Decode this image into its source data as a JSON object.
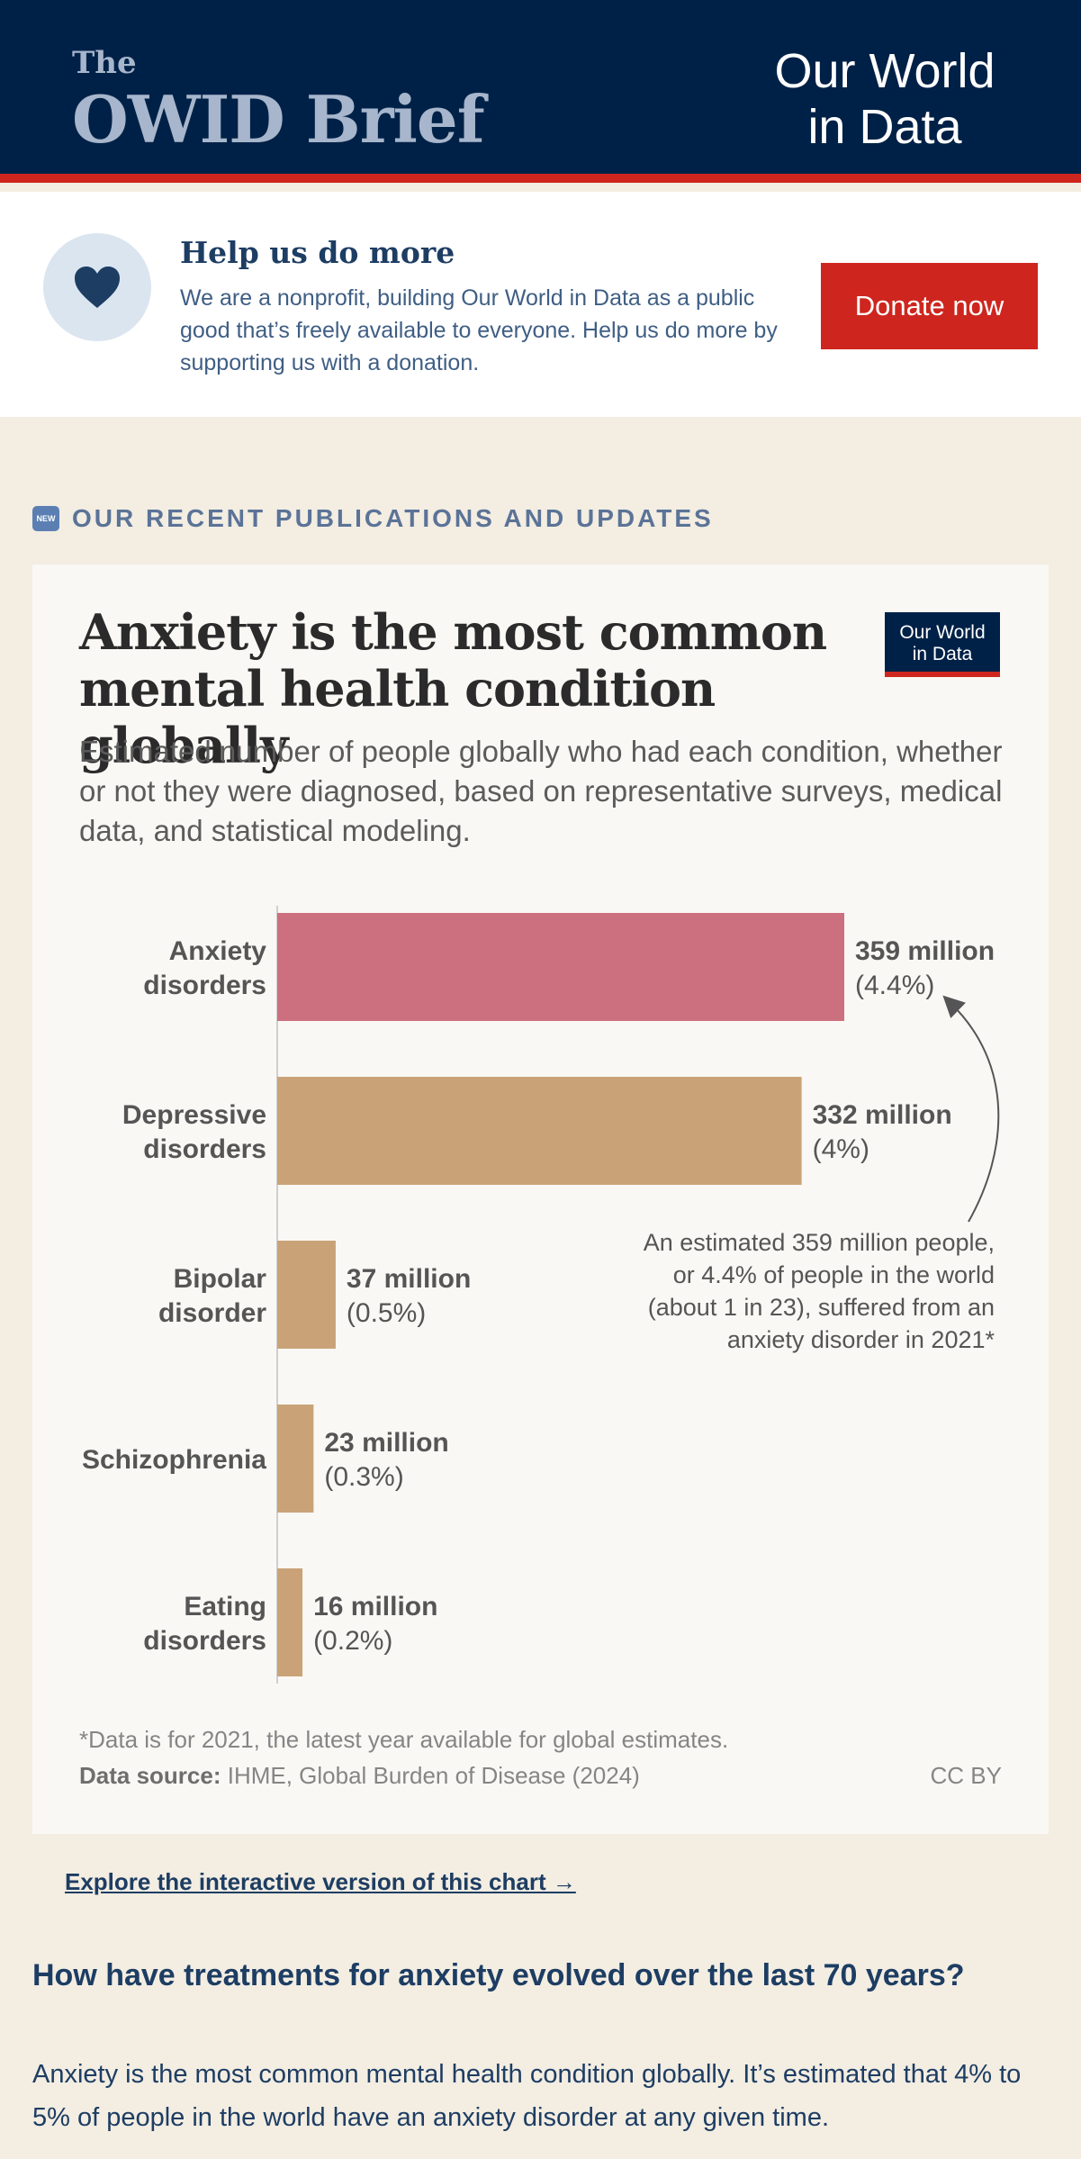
{
  "header": {
    "brand_small": "The",
    "brand_name": "OWID Brief",
    "logo_line1": "Our World",
    "logo_line2": "in Data"
  },
  "donate": {
    "title": "Help us do more",
    "text": "We are a nonprofit, building Our World in Data as a public good that’s freely available to everyone. Help us do more by supporting us with a donation.",
    "button": "Donate now"
  },
  "section": {
    "badge": "NEW",
    "label": "OUR RECENT PUBLICATIONS AND UPDATES"
  },
  "card": {
    "logo_line1": "Our World",
    "logo_line2": "in Data",
    "footnote": "*Data is for 2021, the latest year available for global estimates.",
    "source_label": "Data source:",
    "source_text": " IHME, Global Burden of Disease (2024)",
    "license": "CC BY"
  },
  "chart_data": {
    "type": "bar",
    "orientation": "horizontal",
    "title": "Anxiety is the most common mental health condition globally",
    "subtitle": "Estimated number of people globally who had each condition, whether or not they were diagnosed, based on representative surveys, medical data, and statistical modeling.",
    "unit": "million",
    "categories": [
      [
        "Anxiety",
        "disorders"
      ],
      [
        "Depressive",
        "disorders"
      ],
      [
        "Bipolar",
        "disorder"
      ],
      [
        "Schizophrenia"
      ],
      [
        "Eating",
        "disorders"
      ]
    ],
    "values": [
      359,
      332,
      37,
      23,
      16
    ],
    "value_labels": [
      "359 million",
      "332 million",
      "37 million",
      "23 million",
      "16 million"
    ],
    "share_labels": [
      "(4.4%)",
      "(4%)",
      "(0.5%)",
      "(0.3%)",
      "(0.2%)"
    ],
    "colors": [
      "#cc6f7f",
      "#c9a377",
      "#c9a377",
      "#c9a377",
      "#c9a377"
    ],
    "xlim": [
      0,
      359
    ],
    "annotation": [
      "An estimated 359 million people,",
      "or 4.4% of people in the world",
      "(about 1 in 23), suffered from an",
      "anxiety disorder in 2021*"
    ]
  },
  "explore": {
    "link": "Explore the interactive version of this chart →"
  },
  "article": {
    "heading": "How have treatments for anxiety evolved over the last 70 years?",
    "paragraph": "Anxiety is the most common mental health condition globally. It’s estimated that 4% to 5% of people in the world have an anxiety disorder at any given time."
  }
}
